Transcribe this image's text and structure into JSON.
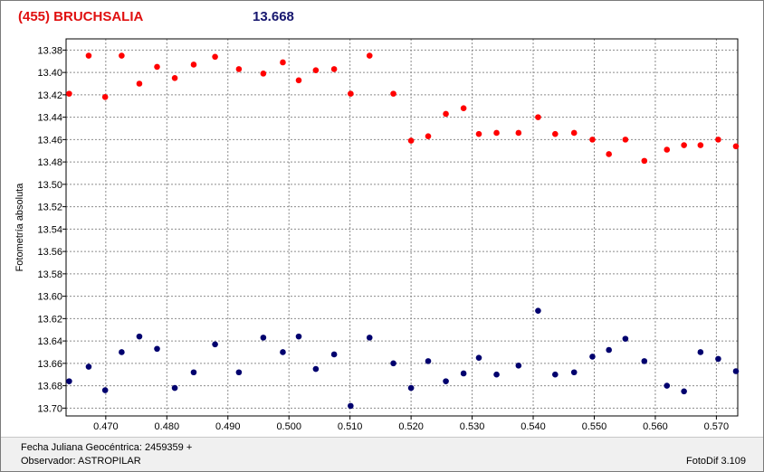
{
  "header": {
    "object_name": "(455) BRUCHSALIA",
    "magnitude": "13.668"
  },
  "footer": {
    "date_label": "Fecha Juliana Geocéntrica: 2459359 +",
    "observer_label": "Observador: ASTROPILAR",
    "version": "FotoDif 3.109"
  },
  "colors": {
    "series_red": "#ff0000",
    "series_blue": "#00006e",
    "title_red": "#e01010",
    "title_blue": "#16166e"
  },
  "chart_data": {
    "type": "scatter",
    "ylabel": "Fotometría absoluta",
    "xlabel": "",
    "xlim": [
      0.4635,
      0.5735
    ],
    "ylim": [
      13.37,
      13.707
    ],
    "y_inverted": true,
    "grid": true,
    "x_ticks": [
      "0.470",
      "0.480",
      "0.490",
      "0.500",
      "0.510",
      "0.520",
      "0.530",
      "0.540",
      "0.550",
      "0.560",
      "0.570"
    ],
    "y_ticks": [
      "13.38",
      "13.40",
      "13.42",
      "13.44",
      "13.46",
      "13.48",
      "13.50",
      "13.52",
      "13.54",
      "13.56",
      "13.58",
      "13.60",
      "13.62",
      "13.64",
      "13.66",
      "13.68",
      "13.70"
    ],
    "series": [
      {
        "color": "#ff0000",
        "points": [
          [
            0.464,
            13.419
          ],
          [
            0.4672,
            13.385
          ],
          [
            0.4699,
            13.422
          ],
          [
            0.4726,
            13.385
          ],
          [
            0.4755,
            13.41
          ],
          [
            0.4784,
            13.395
          ],
          [
            0.4813,
            13.405
          ],
          [
            0.4844,
            13.393
          ],
          [
            0.4879,
            13.386
          ],
          [
            0.4918,
            13.397
          ],
          [
            0.4958,
            13.401
          ],
          [
            0.499,
            13.391
          ],
          [
            0.5016,
            13.407
          ],
          [
            0.5044,
            13.398
          ],
          [
            0.5074,
            13.397
          ],
          [
            0.5101,
            13.419
          ],
          [
            0.5132,
            13.385
          ],
          [
            0.5171,
            13.419
          ],
          [
            0.52,
            13.461
          ],
          [
            0.5228,
            13.457
          ],
          [
            0.5257,
            13.437
          ],
          [
            0.5286,
            13.432
          ],
          [
            0.5311,
            13.455
          ],
          [
            0.534,
            13.454
          ],
          [
            0.5376,
            13.454
          ],
          [
            0.5408,
            13.44
          ],
          [
            0.5436,
            13.455
          ],
          [
            0.5467,
            13.454
          ],
          [
            0.5497,
            13.46
          ],
          [
            0.5524,
            13.473
          ],
          [
            0.5551,
            13.46
          ],
          [
            0.5582,
            13.479
          ],
          [
            0.5619,
            13.469
          ],
          [
            0.5647,
            13.465
          ],
          [
            0.5674,
            13.465
          ],
          [
            0.5703,
            13.46
          ],
          [
            0.5732,
            13.466
          ]
        ]
      },
      {
        "color": "#00006e",
        "points": [
          [
            0.464,
            13.676
          ],
          [
            0.4672,
            13.663
          ],
          [
            0.4699,
            13.684
          ],
          [
            0.4726,
            13.65
          ],
          [
            0.4755,
            13.636
          ],
          [
            0.4784,
            13.647
          ],
          [
            0.4813,
            13.682
          ],
          [
            0.4844,
            13.668
          ],
          [
            0.4879,
            13.643
          ],
          [
            0.4918,
            13.668
          ],
          [
            0.4958,
            13.637
          ],
          [
            0.499,
            13.65
          ],
          [
            0.5016,
            13.636
          ],
          [
            0.5044,
            13.665
          ],
          [
            0.5074,
            13.652
          ],
          [
            0.5101,
            13.698
          ],
          [
            0.5132,
            13.637
          ],
          [
            0.5171,
            13.66
          ],
          [
            0.52,
            13.682
          ],
          [
            0.5228,
            13.658
          ],
          [
            0.5257,
            13.676
          ],
          [
            0.5286,
            13.669
          ],
          [
            0.5311,
            13.655
          ],
          [
            0.534,
            13.67
          ],
          [
            0.5376,
            13.662
          ],
          [
            0.5408,
            13.613
          ],
          [
            0.5436,
            13.67
          ],
          [
            0.5467,
            13.668
          ],
          [
            0.5497,
            13.654
          ],
          [
            0.5524,
            13.648
          ],
          [
            0.5551,
            13.638
          ],
          [
            0.5582,
            13.658
          ],
          [
            0.5619,
            13.68
          ],
          [
            0.5647,
            13.685
          ],
          [
            0.5674,
            13.65
          ],
          [
            0.5703,
            13.656
          ],
          [
            0.5732,
            13.667
          ]
        ]
      }
    ]
  }
}
